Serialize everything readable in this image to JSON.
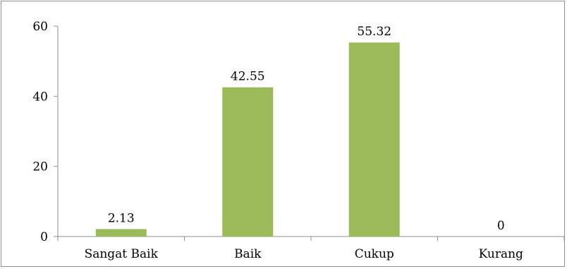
{
  "chart_data": {
    "type": "bar",
    "categories": [
      "Sangat Baik",
      "Baik",
      "Cukup",
      "Kurang"
    ],
    "values": [
      2.13,
      42.55,
      55.32,
      0
    ],
    "data_labels": [
      "2.13",
      "42.55",
      "55.32",
      "0"
    ],
    "title": "",
    "xlabel": "",
    "ylabel": "",
    "ylim": [
      0,
      60
    ],
    "yticks": [
      0,
      20,
      40,
      60
    ],
    "ytick_labels": [
      "0",
      "20",
      "40",
      "60"
    ],
    "grid": false,
    "legend": "none",
    "bar_color": "#9BBB59"
  }
}
